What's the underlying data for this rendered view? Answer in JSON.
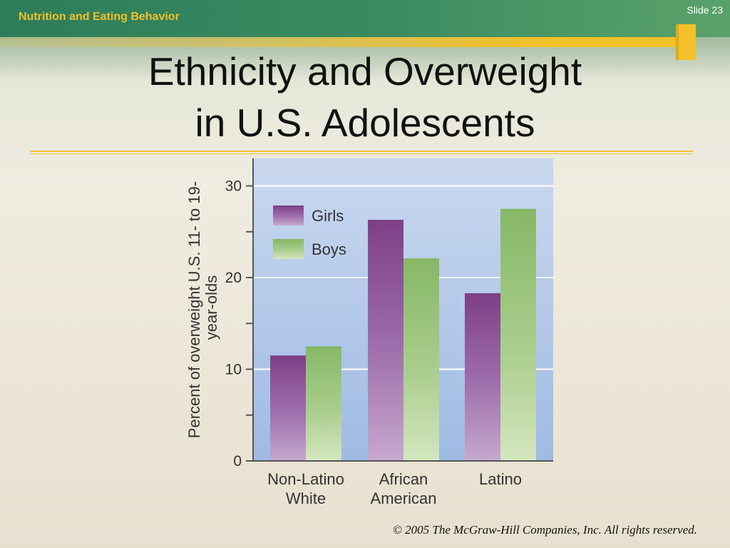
{
  "header": {
    "section_label": "Nutrition and Eating Behavior",
    "slide_number": "Slide 23"
  },
  "title": {
    "line1": "Ethnicity and Overweight",
    "line2": "in U.S. Adolescents"
  },
  "footer": {
    "copyright": "© 2005 The McGraw-Hill Companies, Inc. All rights reserved."
  },
  "colors": {
    "header_green": "#2e7d5a",
    "accent_yellow": "#f2c029",
    "plot_background": "#a9c3e6",
    "girls": "#7d3f86",
    "boys": "#86b866"
  },
  "chart_data": {
    "type": "bar",
    "categories": [
      [
        "Non-Latino",
        "White"
      ],
      [
        "African",
        "American"
      ],
      [
        "Latino"
      ]
    ],
    "series": [
      {
        "name": "Girls",
        "values": [
          11.5,
          26.3,
          18.3
        ]
      },
      {
        "name": "Boys",
        "values": [
          12.5,
          22.1,
          27.5
        ]
      }
    ],
    "ylabel_lines": [
      "Percent of overweight U.S. 11- to 19-",
      "year-olds"
    ],
    "ylim": [
      0,
      33
    ],
    "y_ticks": [
      0,
      10,
      20,
      30
    ],
    "grid": true,
    "legend": "top-left"
  }
}
